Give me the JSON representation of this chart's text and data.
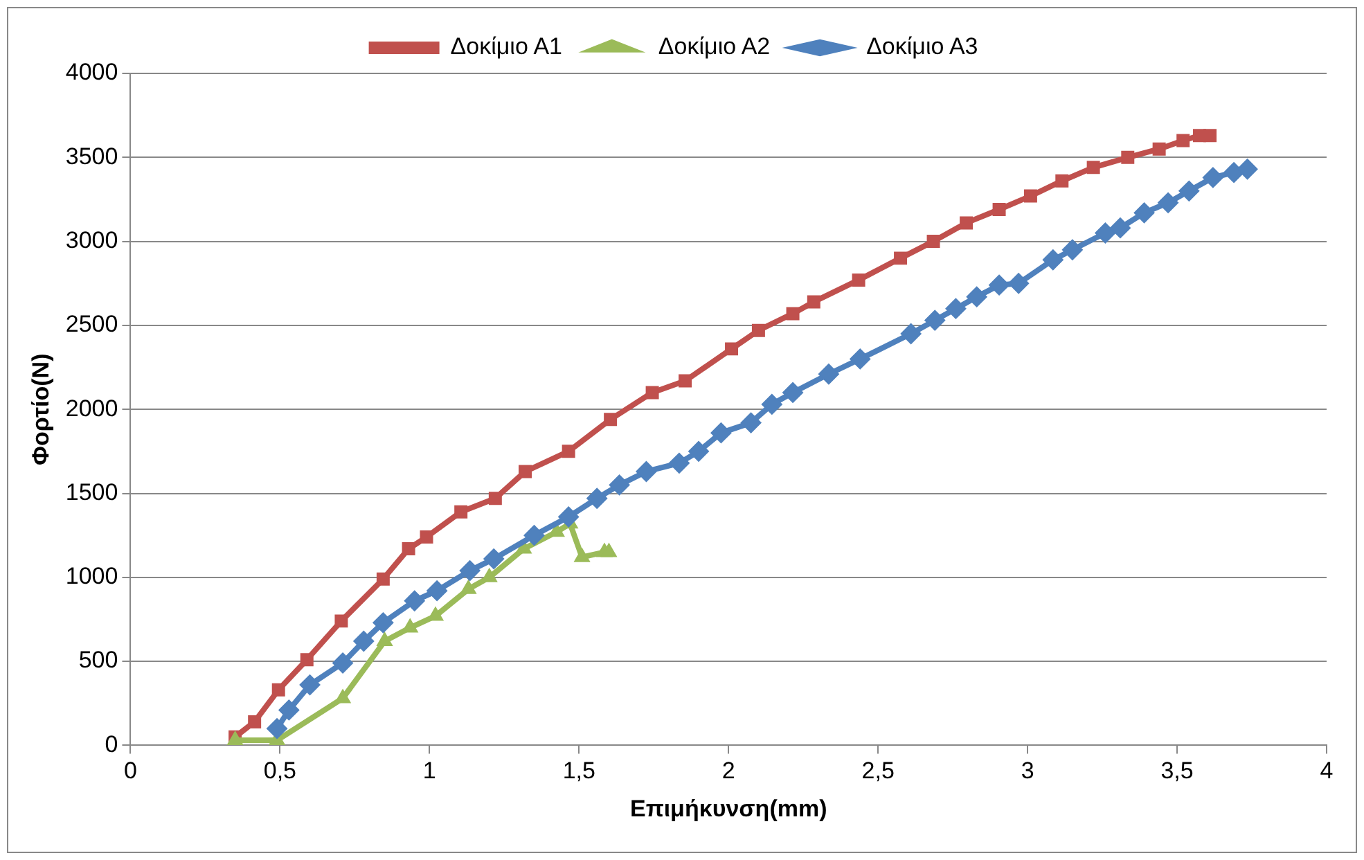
{
  "chart_data": {
    "type": "line",
    "xlabel": "Επιμήκυνση(mm)",
    "ylabel": "Φορτίο(N)",
    "xlim": [
      0,
      4
    ],
    "xticks": [
      0,
      {
        "value": 0.5,
        "label": "0,5"
      },
      1,
      {
        "value": 1.5,
        "label": "1,5"
      },
      2,
      {
        "value": 2.5,
        "label": "2,5"
      },
      3,
      {
        "value": 3.5,
        "label": "3,5"
      },
      4
    ],
    "ylim": [
      0,
      4000
    ],
    "yticks": [
      0,
      500,
      1000,
      1500,
      2000,
      2500,
      3000,
      3500,
      4000
    ],
    "grid": "y",
    "legend": "top",
    "line_style": "solid",
    "series": [
      {
        "name": "Δοκίμιο Α1",
        "color": "#c0504d",
        "marker": "square",
        "x": [
          0.35,
          0.415,
          0.495,
          0.59,
          0.705,
          0.845,
          0.93,
          0.99,
          1.105,
          1.22,
          1.32,
          1.465,
          1.605,
          1.745,
          1.855,
          2.01,
          2.1,
          2.215,
          2.285,
          2.435,
          2.575,
          2.685,
          2.795,
          2.905,
          3.01,
          3.115,
          3.22,
          3.335,
          3.44,
          3.52,
          3.575,
          3.61
        ],
        "values": [
          50,
          140,
          330,
          510,
          740,
          990,
          1170,
          1240,
          1390,
          1470,
          1630,
          1750,
          1940,
          2100,
          2170,
          2360,
          2470,
          2570,
          2640,
          2770,
          2900,
          3000,
          3110,
          3190,
          3270,
          3360,
          3440,
          3500,
          3550,
          3600,
          3630,
          3630
        ]
      },
      {
        "name": "Δοκίμιο Α2",
        "color": "#9bbb59",
        "marker": "triangle",
        "x": [
          0.35,
          0.49,
          0.71,
          0.85,
          0.935,
          1.02,
          1.13,
          1.2,
          1.315,
          1.425,
          1.47,
          1.51,
          1.585,
          1.6
        ],
        "values": [
          30,
          30,
          280,
          620,
          700,
          770,
          930,
          1000,
          1170,
          1270,
          1320,
          1120,
          1150,
          1150
        ]
      },
      {
        "name": "Δοκίμιο Α3",
        "color": "#4f81bd",
        "marker": "diamond",
        "x": [
          0.49,
          0.53,
          0.6,
          0.71,
          0.78,
          0.845,
          0.95,
          1.025,
          1.135,
          1.215,
          1.35,
          1.465,
          1.56,
          1.635,
          1.725,
          1.835,
          1.9,
          1.975,
          2.075,
          2.145,
          2.215,
          2.335,
          2.44,
          2.61,
          2.69,
          2.76,
          2.83,
          2.905,
          2.97,
          3.085,
          3.15,
          3.26,
          3.31,
          3.39,
          3.47,
          3.54,
          3.62,
          3.69,
          3.735
        ],
        "values": [
          100,
          210,
          360,
          490,
          620,
          730,
          860,
          920,
          1040,
          1110,
          1250,
          1360,
          1470,
          1550,
          1630,
          1680,
          1750,
          1860,
          1920,
          2030,
          2100,
          2210,
          2300,
          2450,
          2530,
          2600,
          2670,
          2740,
          2750,
          2890,
          2950,
          3050,
          3080,
          3170,
          3230,
          3300,
          3380,
          3410,
          3430
        ]
      }
    ]
  }
}
